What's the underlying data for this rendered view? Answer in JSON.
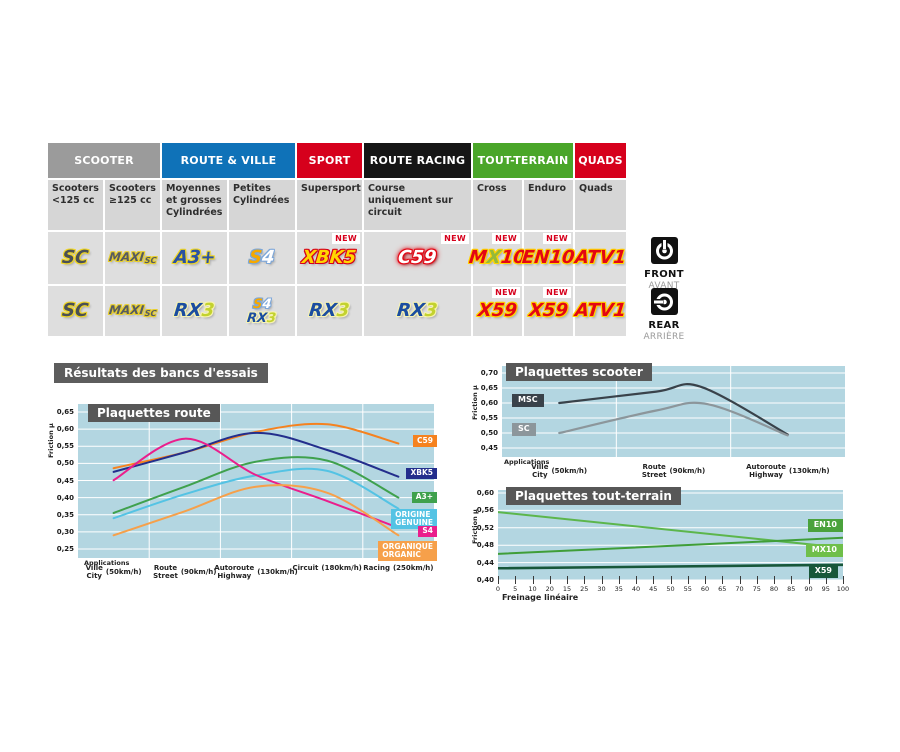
{
  "section_title": "Résultats des bancs d'essais",
  "position_labels": {
    "front_en": "FRONT",
    "front_fr": "AVANT",
    "rear_en": "REAR",
    "rear_fr": "ARRIÈRE"
  },
  "table": {
    "new_label": "NEW",
    "groups": [
      {
        "label": "SCOOTER",
        "color": "#9b9b9b",
        "span": 2
      },
      {
        "label": "ROUTE & VILLE",
        "color": "#0f72b8",
        "span": 2
      },
      {
        "label": "SPORT",
        "color": "#d6001c",
        "span": 1
      },
      {
        "label": "ROUTE RACING",
        "color": "#161616",
        "span": 1
      },
      {
        "label": "TOUT-TERRAIN",
        "color": "#4aa629",
        "span": 2
      },
      {
        "label": "QUADS",
        "color": "#d6001c",
        "span": 1
      }
    ],
    "subheaders": [
      "Scooters <125 cc",
      "Scooters ≥125 cc",
      "Moyennes et grosses Cylindrées",
      "Petites Cylindrées",
      "Supersport",
      "Course uniquement sur circuit",
      "Cross",
      "Enduro",
      "Quads"
    ],
    "products": {
      "sc": {
        "parts": [
          {
            "text": "SC",
            "color": "#4a5055"
          }
        ],
        "outline": "#f0d626"
      },
      "maxisc": {
        "parts": [
          {
            "text": "MAXI",
            "color": "#565b60"
          },
          {
            "text": "SC",
            "color": "#565b60",
            "small": true
          }
        ],
        "outline": "#e8cf2e"
      },
      "a3": {
        "parts": [
          {
            "text": "A3+",
            "color": "#2a52a3"
          }
        ],
        "outline": "#f0d626"
      },
      "s4": {
        "parts": [
          {
            "text": "S",
            "color": "#f6a800"
          },
          {
            "text": "4",
            "color": "#ffffff"
          }
        ],
        "outline": "#7da7d9"
      },
      "xbk5": {
        "parts": [
          {
            "text": "XBK5",
            "color": "#ffd500"
          }
        ],
        "outline": "#d6001c"
      },
      "c59": {
        "parts": [
          {
            "text": "C59",
            "color": "#ffffff"
          }
        ],
        "outline": "#e30613",
        "glow": true
      },
      "rx3": {
        "parts": [
          {
            "text": "RX",
            "color": "#1b4da0"
          },
          {
            "text": "3",
            "color": "#c3d22e"
          }
        ],
        "outline": "#f7f3b2"
      },
      "mx10": {
        "parts": [
          {
            "text": "M",
            "color": "#e30613"
          },
          {
            "text": "X",
            "color": "#95b93c"
          },
          {
            "text": "10",
            "color": "#e30613"
          }
        ],
        "outline": "#ffd500"
      },
      "en10": {
        "parts": [
          {
            "text": "EN10",
            "color": "#e30613"
          }
        ],
        "outline": "#ffd500"
      },
      "atv1": {
        "parts": [
          {
            "text": "ATV1",
            "color": "#e30613"
          }
        ],
        "outline": "#ffd500"
      },
      "x59": {
        "parts": [
          {
            "text": "X59",
            "color": "#e30613"
          }
        ],
        "outline": "#ffd500"
      }
    },
    "front_row": [
      {
        "badges": [
          "sc"
        ]
      },
      {
        "badges": [
          "maxisc"
        ]
      },
      {
        "badges": [
          "a3"
        ]
      },
      {
        "badges": [
          "s4"
        ]
      },
      {
        "badges": [
          "xbk5"
        ],
        "new": true
      },
      {
        "badges": [
          "c59"
        ],
        "new": true
      },
      {
        "badges": [
          "mx10"
        ],
        "new": true
      },
      {
        "badges": [
          "en10"
        ],
        "new": true
      },
      {
        "badges": [
          "atv1"
        ]
      }
    ],
    "rear_row": [
      {
        "badges": [
          "sc"
        ]
      },
      {
        "badges": [
          "maxisc"
        ]
      },
      {
        "badges": [
          "rx3"
        ]
      },
      {
        "badges": [
          "s4",
          "rx3"
        ]
      },
      {
        "badges": [
          "rx3"
        ]
      },
      {
        "badges": [
          "rx3"
        ]
      },
      {
        "badges": [
          "x59"
        ],
        "new": true
      },
      {
        "badges": [
          "x59"
        ],
        "new": true
      },
      {
        "badges": [
          "atv1"
        ]
      }
    ]
  },
  "chart_data": [
    {
      "id": "route",
      "type": "line",
      "title": "Plaquettes route",
      "ylabel": "Friction μ",
      "ylim": [
        0.25,
        0.65
      ],
      "yticks": [
        0.65,
        0.6,
        0.55,
        0.5,
        0.45,
        0.4,
        0.35,
        0.3,
        0.25
      ],
      "ytick_labels": [
        "0,65",
        "0,60",
        "0,55",
        "0,50",
        "0,45",
        "0,40",
        "0,35",
        "0,30",
        "0,25"
      ],
      "x_axis_label": "Applications",
      "categories": [
        {
          "line1": "Ville",
          "line2": "City",
          "speed": "(50km/h)"
        },
        {
          "line1": "Route",
          "line2": "Street",
          "speed": "(90km/h)"
        },
        {
          "line1": "Autoroute",
          "line2": "Highway",
          "speed": "(130km/h)"
        },
        {
          "line1": "Circuit",
          "line2": "",
          "speed": "(180km/h)"
        },
        {
          "line1": "Racing",
          "line2": "",
          "speed": "(250km/h)"
        }
      ],
      "series": [
        {
          "name": "C59",
          "color": "#f5821f",
          "values": [
            0.486,
            0.532,
            0.592,
            0.614,
            0.558
          ],
          "legend": [
            "C59"
          ],
          "legend_y": 0.568
        },
        {
          "name": "XBK5",
          "color": "#232e8c",
          "values": [
            0.475,
            0.532,
            0.589,
            0.539,
            0.461
          ],
          "legend": [
            "XBK5"
          ],
          "legend_y": 0.472
        },
        {
          "name": "A3+",
          "color": "#3fa14d",
          "values": [
            0.355,
            0.432,
            0.505,
            0.508,
            0.4
          ],
          "legend": [
            "A3+"
          ],
          "legend_y": 0.402
        },
        {
          "name": "ORIGINE",
          "color": "#54c3e4",
          "values": [
            0.34,
            0.41,
            0.465,
            0.478,
            0.368
          ],
          "legend": [
            "ORIGINE",
            "GENUINE"
          ],
          "legend_y": 0.352
        },
        {
          "name": "S4",
          "color": "#ea1e8c",
          "values": [
            0.451,
            0.572,
            0.466,
            0.39,
            0.312
          ],
          "legend": [
            "S4"
          ],
          "legend_y": 0.303
        },
        {
          "name": "ORGANIQUE",
          "color": "#f6a04a",
          "values": [
            0.29,
            0.36,
            0.432,
            0.414,
            0.29
          ],
          "legend": [
            "ORGANIQUE",
            "ORGANIC"
          ],
          "legend_y": 0.258
        }
      ]
    },
    {
      "id": "scooter",
      "type": "line",
      "title": "Plaquettes scooter",
      "ylabel": "Friction μ",
      "ylim": [
        0.45,
        0.7
      ],
      "yticks": [
        0.7,
        0.65,
        0.6,
        0.55,
        0.5,
        0.45
      ],
      "ytick_labels": [
        "0,70",
        "0,65",
        "0,60",
        "0,55",
        "0,50",
        "0,45"
      ],
      "x_axis_label": "Applications",
      "categories": [
        {
          "line1": "Ville",
          "line2": "City",
          "speed": "(50km/h)"
        },
        {
          "line1": "Route",
          "line2": "Street",
          "speed": "(90km/h)"
        },
        {
          "line1": "Autoroute",
          "line2": "Highway",
          "speed": "(130km/h)"
        }
      ],
      "series": [
        {
          "name": "MSC",
          "color": "#39424a",
          "legend_bg": "#39424a",
          "legend": [
            "MSC"
          ],
          "points": [
            [
              0.167,
              0.6
            ],
            [
              0.45,
              0.638
            ],
            [
              0.58,
              0.654
            ],
            [
              0.833,
              0.495
            ]
          ]
        },
        {
          "name": "SC",
          "color": "#8c969b",
          "legend_bg": "#8c969b",
          "legend": [
            "SC"
          ],
          "points": [
            [
              0.167,
              0.5
            ],
            [
              0.45,
              0.575
            ],
            [
              0.6,
              0.596
            ],
            [
              0.833,
              0.492
            ]
          ]
        }
      ]
    },
    {
      "id": "tt",
      "type": "line",
      "title": "Plaquettes tout-terrain",
      "ylabel": "Friction μ",
      "ylim": [
        0.4,
        0.6
      ],
      "yticks": [
        0.6,
        0.56,
        0.52,
        0.48,
        0.44,
        0.4
      ],
      "ytick_labels": [
        "0,60",
        "0,56",
        "0,52",
        "0,48",
        "0,44",
        "0,40"
      ],
      "xlabel": "Freinage linéaire",
      "xlim": [
        0,
        100
      ],
      "xtick_labels": [
        "0",
        "5",
        "10",
        "20",
        "15",
        "25",
        "30",
        "35",
        "40",
        "45",
        "50",
        "55",
        "60",
        "65",
        "70",
        "75",
        "80",
        "85",
        "90",
        "95",
        "100"
      ],
      "series": [
        {
          "name": "EN10",
          "color": "#5cb64c",
          "legend_bg": "#4aa23c",
          "legend": [
            "EN10"
          ],
          "points": [
            [
              0,
              0.556
            ],
            [
              100,
              0.474
            ]
          ]
        },
        {
          "name": "MX10",
          "color": "#3f9e38",
          "legend_bg": "#6fbf4a",
          "legend": [
            "MX10"
          ],
          "points": [
            [
              0,
              0.46
            ],
            [
              100,
              0.497
            ]
          ]
        },
        {
          "name": "X59",
          "color": "#17573a",
          "legend_bg": "#17573a",
          "legend": [
            "X59"
          ],
          "points": [
            [
              0,
              0.427
            ],
            [
              100,
              0.435
            ]
          ],
          "width": 2.6
        }
      ]
    }
  ]
}
